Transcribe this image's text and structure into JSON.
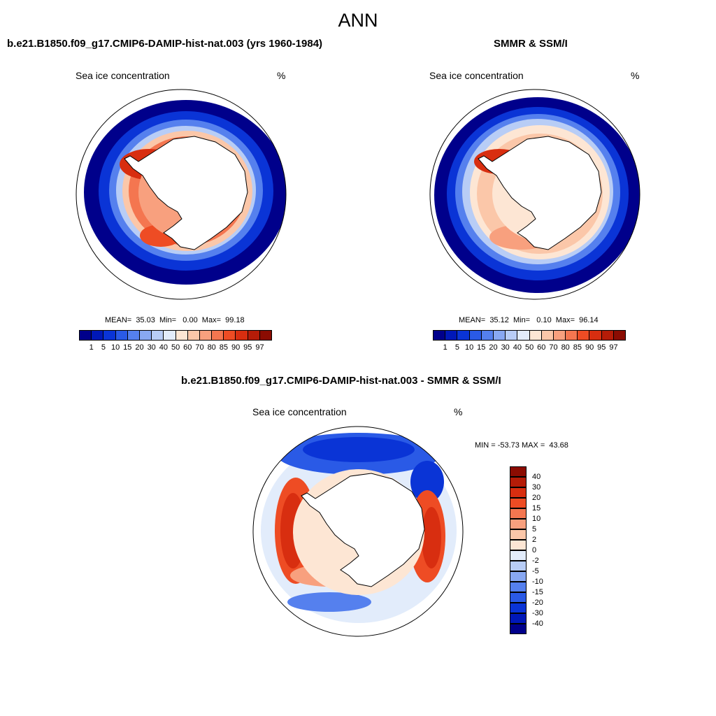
{
  "title": "ANN",
  "panels": [
    {
      "case": "b.e21.B1850.f09_g17.CMIP6-DAMIP-hist-nat.003 (yrs 1960-1984)",
      "variable": "Sea ice concentration",
      "units": "%",
      "stats": "MEAN=  35.03  Min=   0.00  Max=  99.18"
    },
    {
      "case": "SMMR & SSM/I",
      "variable": "Sea ice concentration",
      "units": "%",
      "stats": "MEAN=  35.12  Min=   0.10  Max=  96.14"
    }
  ],
  "diff_panel": {
    "case": "b.e21.B1850.f09_g17.CMIP6-DAMIP-hist-nat.003 - SMMR & SSM/I",
    "variable": "Sea ice concentration",
    "units": "%",
    "stats": "MIN = -53.73 MAX =  43.68"
  },
  "colorbar": {
    "labels": [
      "1",
      "5",
      "10",
      "15",
      "20",
      "30",
      "40",
      "50",
      "60",
      "70",
      "80",
      "85",
      "90",
      "95",
      "97"
    ],
    "colors": [
      "#00008b",
      "#0018b8",
      "#0a34d6",
      "#2a5ae6",
      "#5580ee",
      "#88a8f2",
      "#b8cdf6",
      "#e2ecfb",
      "#fde6d4",
      "#fbc7a9",
      "#f8a07e",
      "#f47650",
      "#ee4c24",
      "#d82e10",
      "#b51c08",
      "#8b0c02"
    ]
  },
  "diff_colorbar": {
    "labels": [
      "40",
      "30",
      "20",
      "15",
      "10",
      "5",
      "2",
      "0",
      "-2",
      "-5",
      "-10",
      "-15",
      "-20",
      "-30",
      "-40"
    ],
    "colors": [
      "#8b0c02",
      "#b51c08",
      "#d82e10",
      "#ee4c24",
      "#f47650",
      "#f8a07e",
      "#fbc7a9",
      "#fde6d4",
      "#e2ecfb",
      "#b8cdf6",
      "#88a8f2",
      "#5580ee",
      "#2a5ae6",
      "#0a34d6",
      "#0018b8",
      "#00008b"
    ]
  }
}
